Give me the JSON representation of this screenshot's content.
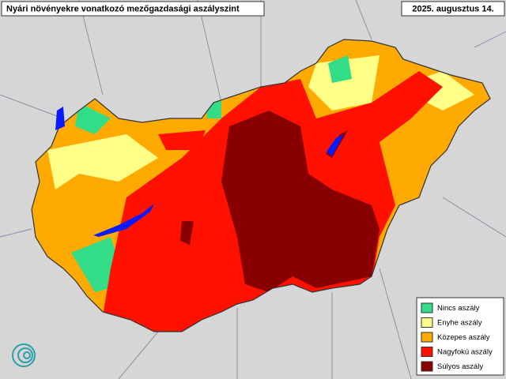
{
  "header": {
    "title": "Nyári növényekre vonatkozó mezőgazdasági aszályszint",
    "date": "2025. augusztus 14."
  },
  "legend": {
    "items": [
      {
        "label": "Nincs aszály",
        "color": "#33dd88"
      },
      {
        "label": "Enyhe aszály",
        "color": "#ffff88"
      },
      {
        "label": "Közepes aszály",
        "color": "#ffaa00"
      },
      {
        "label": "Nagyfokú aszály",
        "color": "#ff1100"
      },
      {
        "label": "Súlyos aszály",
        "color": "#880000"
      }
    ]
  }
}
